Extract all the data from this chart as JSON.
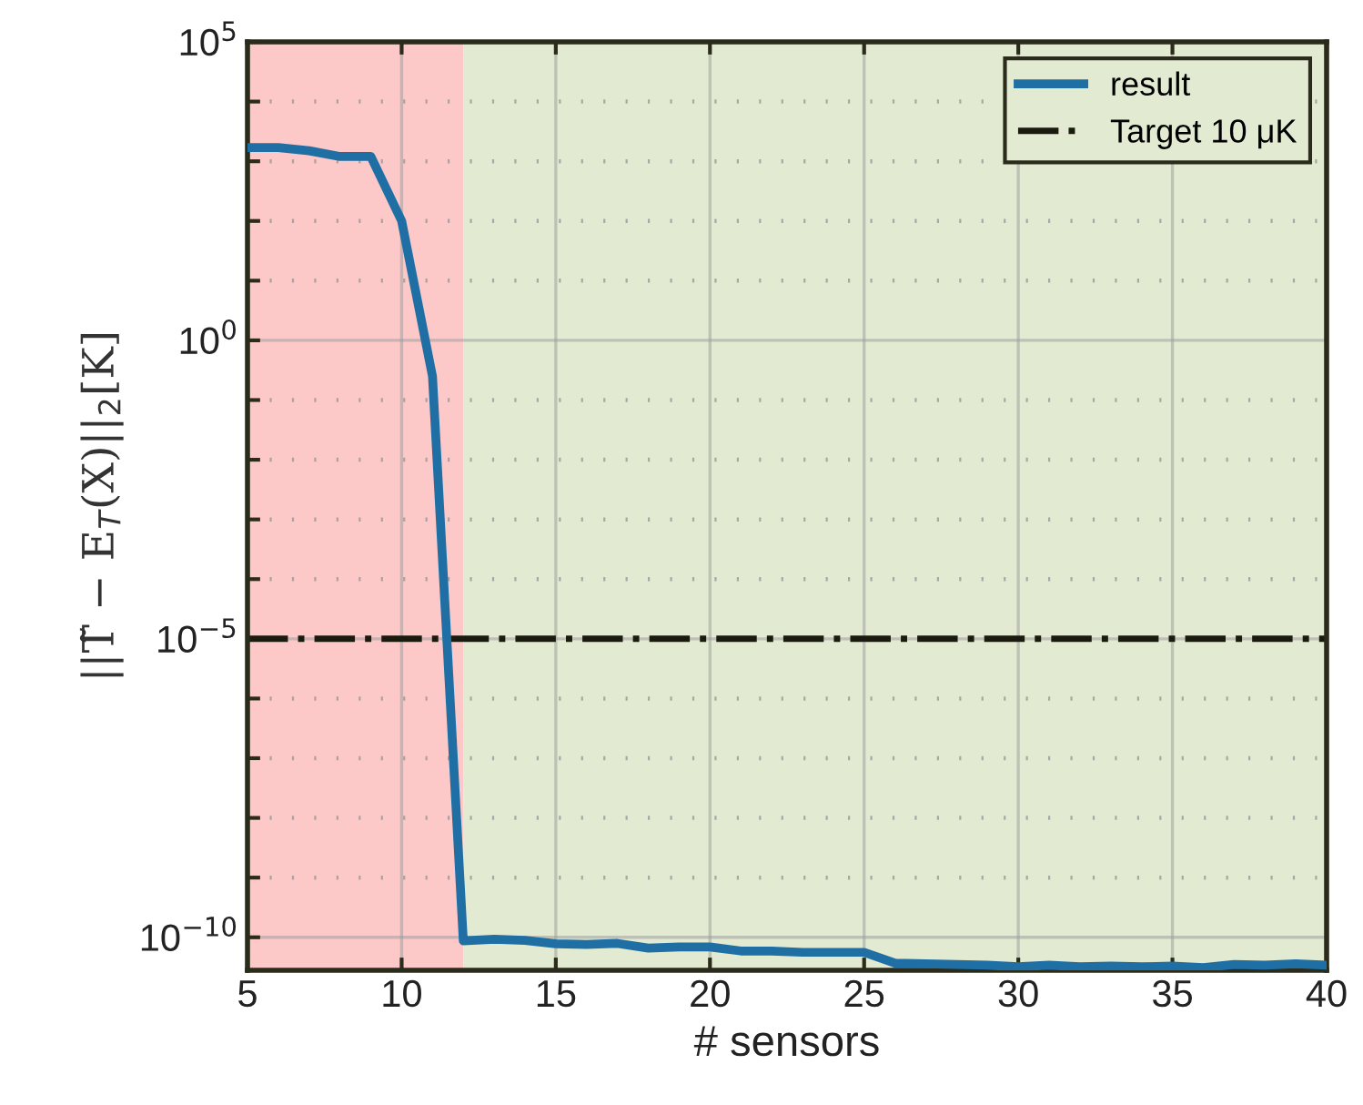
{
  "chart_data": {
    "type": "line",
    "xlabel": "# sensors",
    "ylabel": "||T̃ − E$_{T}$(X)||$_{2}$[K]",
    "x": [
      5,
      6,
      7,
      8,
      9,
      10,
      11,
      12,
      13,
      14,
      15,
      16,
      17,
      18,
      19,
      20,
      21,
      22,
      23,
      24,
      25,
      26,
      27,
      28,
      29,
      30,
      31,
      32,
      33,
      34,
      35,
      36,
      37,
      38,
      39,
      40
    ],
    "series": [
      {
        "name": "result",
        "color": "#1f6fa5",
        "values": [
          1700.0,
          1700.0,
          1500.0,
          1200.0,
          1200.0,
          100.0,
          0.25,
          8.7e-11,
          9.3e-11,
          8.9e-11,
          7.8e-11,
          7.6e-11,
          7.9e-11,
          6.6e-11,
          6.9e-11,
          6.9e-11,
          5.9e-11,
          5.9e-11,
          5.6e-11,
          5.6e-11,
          5.6e-11,
          3.7e-11,
          3.6e-11,
          3.5e-11,
          3.4e-11,
          3.2e-11,
          3.4e-11,
          3.2e-11,
          3.3e-11,
          3.2e-11,
          3.3e-11,
          3.1e-11,
          3.5e-11,
          3.4e-11,
          3.6e-11,
          3.4e-11
        ]
      }
    ],
    "log": "y",
    "xlim": [
      5,
      40
    ],
    "xticks": [
      5,
      10,
      15,
      20,
      25,
      30,
      35,
      40
    ],
    "ylim": [
      2.8e-11,
      100000.0
    ],
    "yticks": [
      {
        "value": 1e-10,
        "label": "10$^{−10}$"
      },
      {
        "value": 1e-09,
        "label": null
      },
      {
        "value": 1e-08,
        "label": null
      },
      {
        "value": 1e-07,
        "label": null
      },
      {
        "value": 1e-06,
        "label": null
      },
      {
        "value": 1e-05,
        "label": "10$^{−5}$"
      },
      {
        "value": 0.0001,
        "label": null
      },
      {
        "value": 0.001,
        "label": null
      },
      {
        "value": 0.01,
        "label": null
      },
      {
        "value": 0.1,
        "label": null
      },
      {
        "value": 1,
        "label": "10$^{0}$"
      },
      {
        "value": 10,
        "label": null
      },
      {
        "value": 100,
        "label": null
      },
      {
        "value": 1000.0,
        "label": null
      },
      {
        "value": 10000.0,
        "label": null
      },
      {
        "value": 100000.0,
        "label": "10$^{5}$"
      }
    ],
    "ref_lines": [
      {
        "axis": "y",
        "value": 1e-05,
        "label": "Target 10 μK",
        "color": "#1a1a0e",
        "line_style": "dashdot"
      }
    ],
    "bands": [
      {
        "axis": "x",
        "from": 5,
        "to": 12,
        "color": "#fcc8c8"
      },
      {
        "axis": "x",
        "from": 12,
        "to": 40,
        "color": "#e2ebd2"
      }
    ],
    "grid": true,
    "legend": "top right",
    "marker": "none",
    "line_style": "solid"
  }
}
